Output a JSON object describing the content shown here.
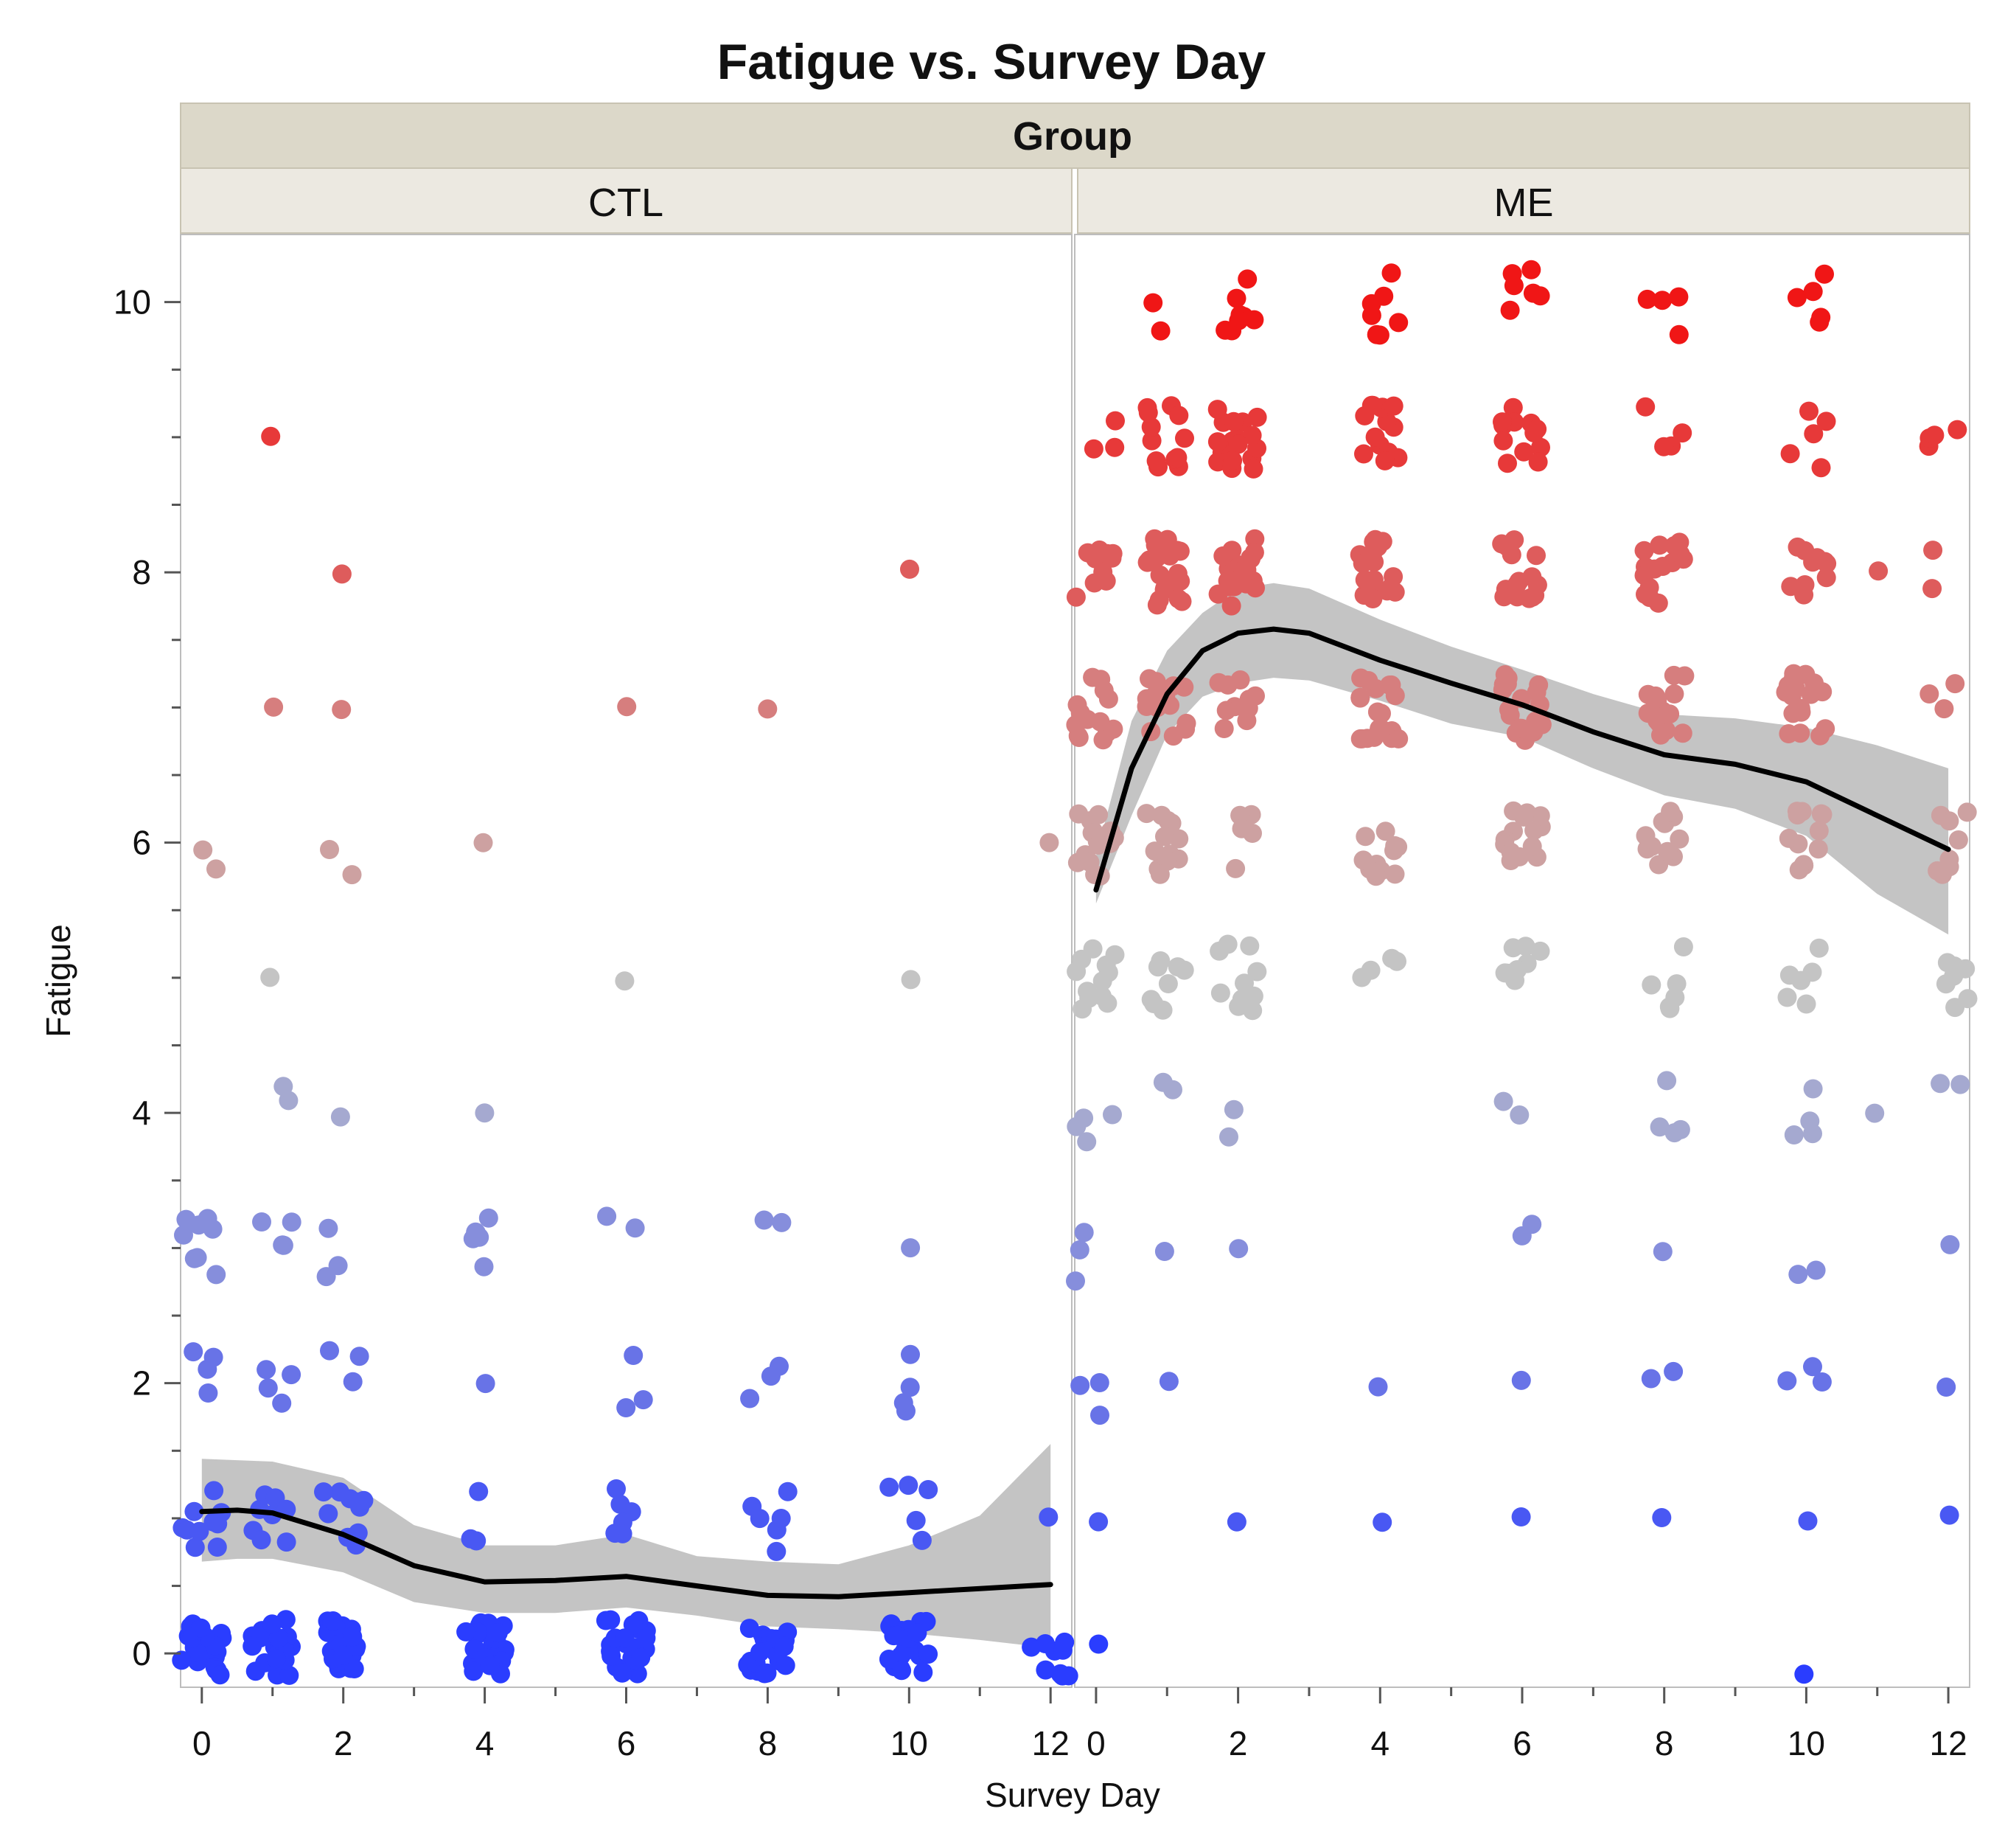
{
  "chart_data": {
    "type": "scatter",
    "title": "Fatigue vs. Survey Day",
    "group_label": "Group",
    "xlabel": "Survey Day",
    "ylabel": "Fatigue",
    "xlim": [
      -0.3,
      12.3
    ],
    "ylim": [
      -0.25,
      10.5
    ],
    "x_ticks": [
      0,
      2,
      4,
      6,
      8,
      10,
      12
    ],
    "y_ticks": [
      0,
      2,
      4,
      6,
      8,
      10
    ],
    "y_tick_labels": [
      "0",
      "2",
      "4",
      "6",
      "8",
      "10"
    ],
    "x_tick_labels": [
      "0",
      "2",
      "4",
      "6",
      "8",
      "10",
      "12"
    ],
    "color_scale": {
      "low": "#2a3dff",
      "mid": "#c4c4c4",
      "high": "#f01616"
    },
    "smoother_color": "#000000",
    "band_color": "#b4b4b4",
    "panels": [
      {
        "name": "CTL",
        "points": [
          {
            "x": 0,
            "y": 0,
            "n": 24
          },
          {
            "x": 1,
            "y": 0,
            "n": 20
          },
          {
            "x": 2,
            "y": 0,
            "n": 22
          },
          {
            "x": 4,
            "y": 0,
            "n": 26
          },
          {
            "x": 6,
            "y": 0,
            "n": 22
          },
          {
            "x": 8,
            "y": 0,
            "n": 20
          },
          {
            "x": 10,
            "y": 0,
            "n": 24
          },
          {
            "x": 12,
            "y": 0,
            "n": 9
          },
          {
            "x": 0,
            "y": 1,
            "n": 10
          },
          {
            "x": 1,
            "y": 1,
            "n": 8
          },
          {
            "x": 2,
            "y": 1,
            "n": 10
          },
          {
            "x": 4,
            "y": 1,
            "n": 3
          },
          {
            "x": 6,
            "y": 1,
            "n": 6
          },
          {
            "x": 8,
            "y": 1,
            "n": 6
          },
          {
            "x": 10,
            "y": 1,
            "n": 5
          },
          {
            "x": 12,
            "y": 1,
            "n": 1
          },
          {
            "x": 0,
            "y": 2,
            "n": 4
          },
          {
            "x": 1,
            "y": 2,
            "n": 4
          },
          {
            "x": 2,
            "y": 2,
            "n": 3
          },
          {
            "x": 4,
            "y": 2,
            "n": 1
          },
          {
            "x": 6,
            "y": 2,
            "n": 3
          },
          {
            "x": 8,
            "y": 2,
            "n": 3
          },
          {
            "x": 10,
            "y": 2,
            "n": 4
          },
          {
            "x": 0,
            "y": 3,
            "n": 8
          },
          {
            "x": 1,
            "y": 3,
            "n": 4
          },
          {
            "x": 2,
            "y": 3,
            "n": 3
          },
          {
            "x": 4,
            "y": 3,
            "n": 6
          },
          {
            "x": 6,
            "y": 3,
            "n": 2
          },
          {
            "x": 8,
            "y": 3,
            "n": 2
          },
          {
            "x": 10,
            "y": 3,
            "n": 1
          },
          {
            "x": 1,
            "y": 4,
            "n": 2
          },
          {
            "x": 2,
            "y": 4,
            "n": 1
          },
          {
            "x": 4,
            "y": 4,
            "n": 1
          },
          {
            "x": 1,
            "y": 5,
            "n": 1
          },
          {
            "x": 6,
            "y": 5,
            "n": 1
          },
          {
            "x": 10,
            "y": 5,
            "n": 1
          },
          {
            "x": 0,
            "y": 6,
            "n": 2
          },
          {
            "x": 2,
            "y": 6,
            "n": 2
          },
          {
            "x": 4,
            "y": 6,
            "n": 1
          },
          {
            "x": 12,
            "y": 6,
            "n": 1
          },
          {
            "x": 1,
            "y": 7,
            "n": 1
          },
          {
            "x": 2,
            "y": 7,
            "n": 1
          },
          {
            "x": 6,
            "y": 7,
            "n": 1
          },
          {
            "x": 8,
            "y": 7,
            "n": 1
          },
          {
            "x": 2,
            "y": 8,
            "n": 1
          },
          {
            "x": 10,
            "y": 8,
            "n": 1
          },
          {
            "x": 1,
            "y": 9,
            "n": 1
          }
        ],
        "smoother": {
          "x": [
            0,
            0.5,
            1,
            2,
            3,
            4,
            5,
            6,
            7,
            8,
            9,
            10,
            11,
            12
          ],
          "y": [
            1.05,
            1.06,
            1.04,
            0.88,
            0.65,
            0.53,
            0.54,
            0.57,
            0.5,
            0.43,
            0.42,
            0.45,
            0.48,
            0.51
          ],
          "lower": [
            0.68,
            0.7,
            0.7,
            0.6,
            0.38,
            0.3,
            0.3,
            0.34,
            0.28,
            0.2,
            0.18,
            0.15,
            0.1,
            0.04
          ],
          "upper": [
            1.44,
            1.43,
            1.42,
            1.3,
            0.95,
            0.8,
            0.8,
            0.88,
            0.72,
            0.68,
            0.66,
            0.8,
            1.02,
            1.55
          ]
        }
      },
      {
        "name": "ME",
        "points": [
          {
            "x": 0,
            "y": 0,
            "n": 1
          },
          {
            "x": 10,
            "y": 0,
            "n": 1
          },
          {
            "x": 0,
            "y": 1,
            "n": 1
          },
          {
            "x": 2,
            "y": 1,
            "n": 1
          },
          {
            "x": 4,
            "y": 1,
            "n": 1
          },
          {
            "x": 6,
            "y": 1,
            "n": 1
          },
          {
            "x": 8,
            "y": 1,
            "n": 1
          },
          {
            "x": 10,
            "y": 1,
            "n": 1
          },
          {
            "x": 12,
            "y": 1,
            "n": 1
          },
          {
            "x": 0,
            "y": 2,
            "n": 3
          },
          {
            "x": 1,
            "y": 2,
            "n": 1
          },
          {
            "x": 4,
            "y": 2,
            "n": 1
          },
          {
            "x": 6,
            "y": 2,
            "n": 1
          },
          {
            "x": 8,
            "y": 2,
            "n": 2
          },
          {
            "x": 10,
            "y": 2,
            "n": 3
          },
          {
            "x": 12,
            "y": 2,
            "n": 1
          },
          {
            "x": 0,
            "y": 3,
            "n": 3
          },
          {
            "x": 1,
            "y": 3,
            "n": 1
          },
          {
            "x": 2,
            "y": 3,
            "n": 1
          },
          {
            "x": 6,
            "y": 3,
            "n": 2
          },
          {
            "x": 8,
            "y": 3,
            "n": 1
          },
          {
            "x": 10,
            "y": 3,
            "n": 2
          },
          {
            "x": 12,
            "y": 3,
            "n": 1
          },
          {
            "x": 0,
            "y": 4,
            "n": 4
          },
          {
            "x": 1,
            "y": 4,
            "n": 2
          },
          {
            "x": 2,
            "y": 4,
            "n": 2
          },
          {
            "x": 6,
            "y": 4,
            "n": 2
          },
          {
            "x": 8,
            "y": 4,
            "n": 4
          },
          {
            "x": 10,
            "y": 4,
            "n": 4
          },
          {
            "x": 11,
            "y": 4,
            "n": 1
          },
          {
            "x": 12,
            "y": 4,
            "n": 2
          },
          {
            "x": 0,
            "y": 5,
            "n": 12
          },
          {
            "x": 1,
            "y": 5,
            "n": 8
          },
          {
            "x": 2,
            "y": 5,
            "n": 10
          },
          {
            "x": 4,
            "y": 5,
            "n": 4
          },
          {
            "x": 6,
            "y": 5,
            "n": 8
          },
          {
            "x": 8,
            "y": 5,
            "n": 6
          },
          {
            "x": 10,
            "y": 5,
            "n": 6
          },
          {
            "x": 12,
            "y": 5,
            "n": 8
          },
          {
            "x": 0,
            "y": 6,
            "n": 16
          },
          {
            "x": 1,
            "y": 6,
            "n": 12
          },
          {
            "x": 2,
            "y": 6,
            "n": 5
          },
          {
            "x": 4,
            "y": 6,
            "n": 12
          },
          {
            "x": 6,
            "y": 6,
            "n": 14
          },
          {
            "x": 8,
            "y": 6,
            "n": 12
          },
          {
            "x": 10,
            "y": 6,
            "n": 12
          },
          {
            "x": 12,
            "y": 6,
            "n": 8
          },
          {
            "x": 0,
            "y": 7,
            "n": 14
          },
          {
            "x": 1,
            "y": 7,
            "n": 16
          },
          {
            "x": 2,
            "y": 7,
            "n": 10
          },
          {
            "x": 4,
            "y": 7,
            "n": 20
          },
          {
            "x": 6,
            "y": 7,
            "n": 18
          },
          {
            "x": 8,
            "y": 7,
            "n": 16
          },
          {
            "x": 10,
            "y": 7,
            "n": 18
          },
          {
            "x": 12,
            "y": 7,
            "n": 3
          },
          {
            "x": 0,
            "y": 8,
            "n": 12
          },
          {
            "x": 1,
            "y": 8,
            "n": 20
          },
          {
            "x": 2,
            "y": 8,
            "n": 22
          },
          {
            "x": 4,
            "y": 8,
            "n": 18
          },
          {
            "x": 6,
            "y": 8,
            "n": 16
          },
          {
            "x": 8,
            "y": 8,
            "n": 16
          },
          {
            "x": 10,
            "y": 8,
            "n": 10
          },
          {
            "x": 11,
            "y": 8,
            "n": 1
          },
          {
            "x": 12,
            "y": 8,
            "n": 2
          },
          {
            "x": 0,
            "y": 9,
            "n": 3
          },
          {
            "x": 1,
            "y": 9,
            "n": 12
          },
          {
            "x": 2,
            "y": 9,
            "n": 18
          },
          {
            "x": 4,
            "y": 9,
            "n": 14
          },
          {
            "x": 6,
            "y": 9,
            "n": 12
          },
          {
            "x": 8,
            "y": 9,
            "n": 4
          },
          {
            "x": 10,
            "y": 9,
            "n": 5
          },
          {
            "x": 12,
            "y": 9,
            "n": 4
          },
          {
            "x": 1,
            "y": 10,
            "n": 2
          },
          {
            "x": 2,
            "y": 10,
            "n": 8
          },
          {
            "x": 4,
            "y": 10,
            "n": 7
          },
          {
            "x": 6,
            "y": 10,
            "n": 6
          },
          {
            "x": 8,
            "y": 10,
            "n": 4
          },
          {
            "x": 10,
            "y": 10,
            "n": 5
          }
        ],
        "smoother": {
          "x": [
            0,
            0.5,
            1,
            1.5,
            2,
            2.5,
            3,
            4,
            5,
            6,
            7,
            8,
            9,
            10,
            11,
            12
          ],
          "y": [
            5.65,
            6.55,
            7.1,
            7.42,
            7.55,
            7.58,
            7.55,
            7.35,
            7.18,
            7.02,
            6.82,
            6.65,
            6.58,
            6.45,
            6.2,
            5.95
          ],
          "lower": [
            5.55,
            6.2,
            6.8,
            7.08,
            7.18,
            7.22,
            7.2,
            7.05,
            6.88,
            6.78,
            6.55,
            6.35,
            6.25,
            6.05,
            5.62,
            5.32
          ],
          "upper": [
            5.9,
            6.9,
            7.42,
            7.7,
            7.88,
            7.92,
            7.88,
            7.65,
            7.45,
            7.28,
            7.1,
            6.95,
            6.92,
            6.85,
            6.72,
            6.55
          ]
        }
      }
    ]
  }
}
